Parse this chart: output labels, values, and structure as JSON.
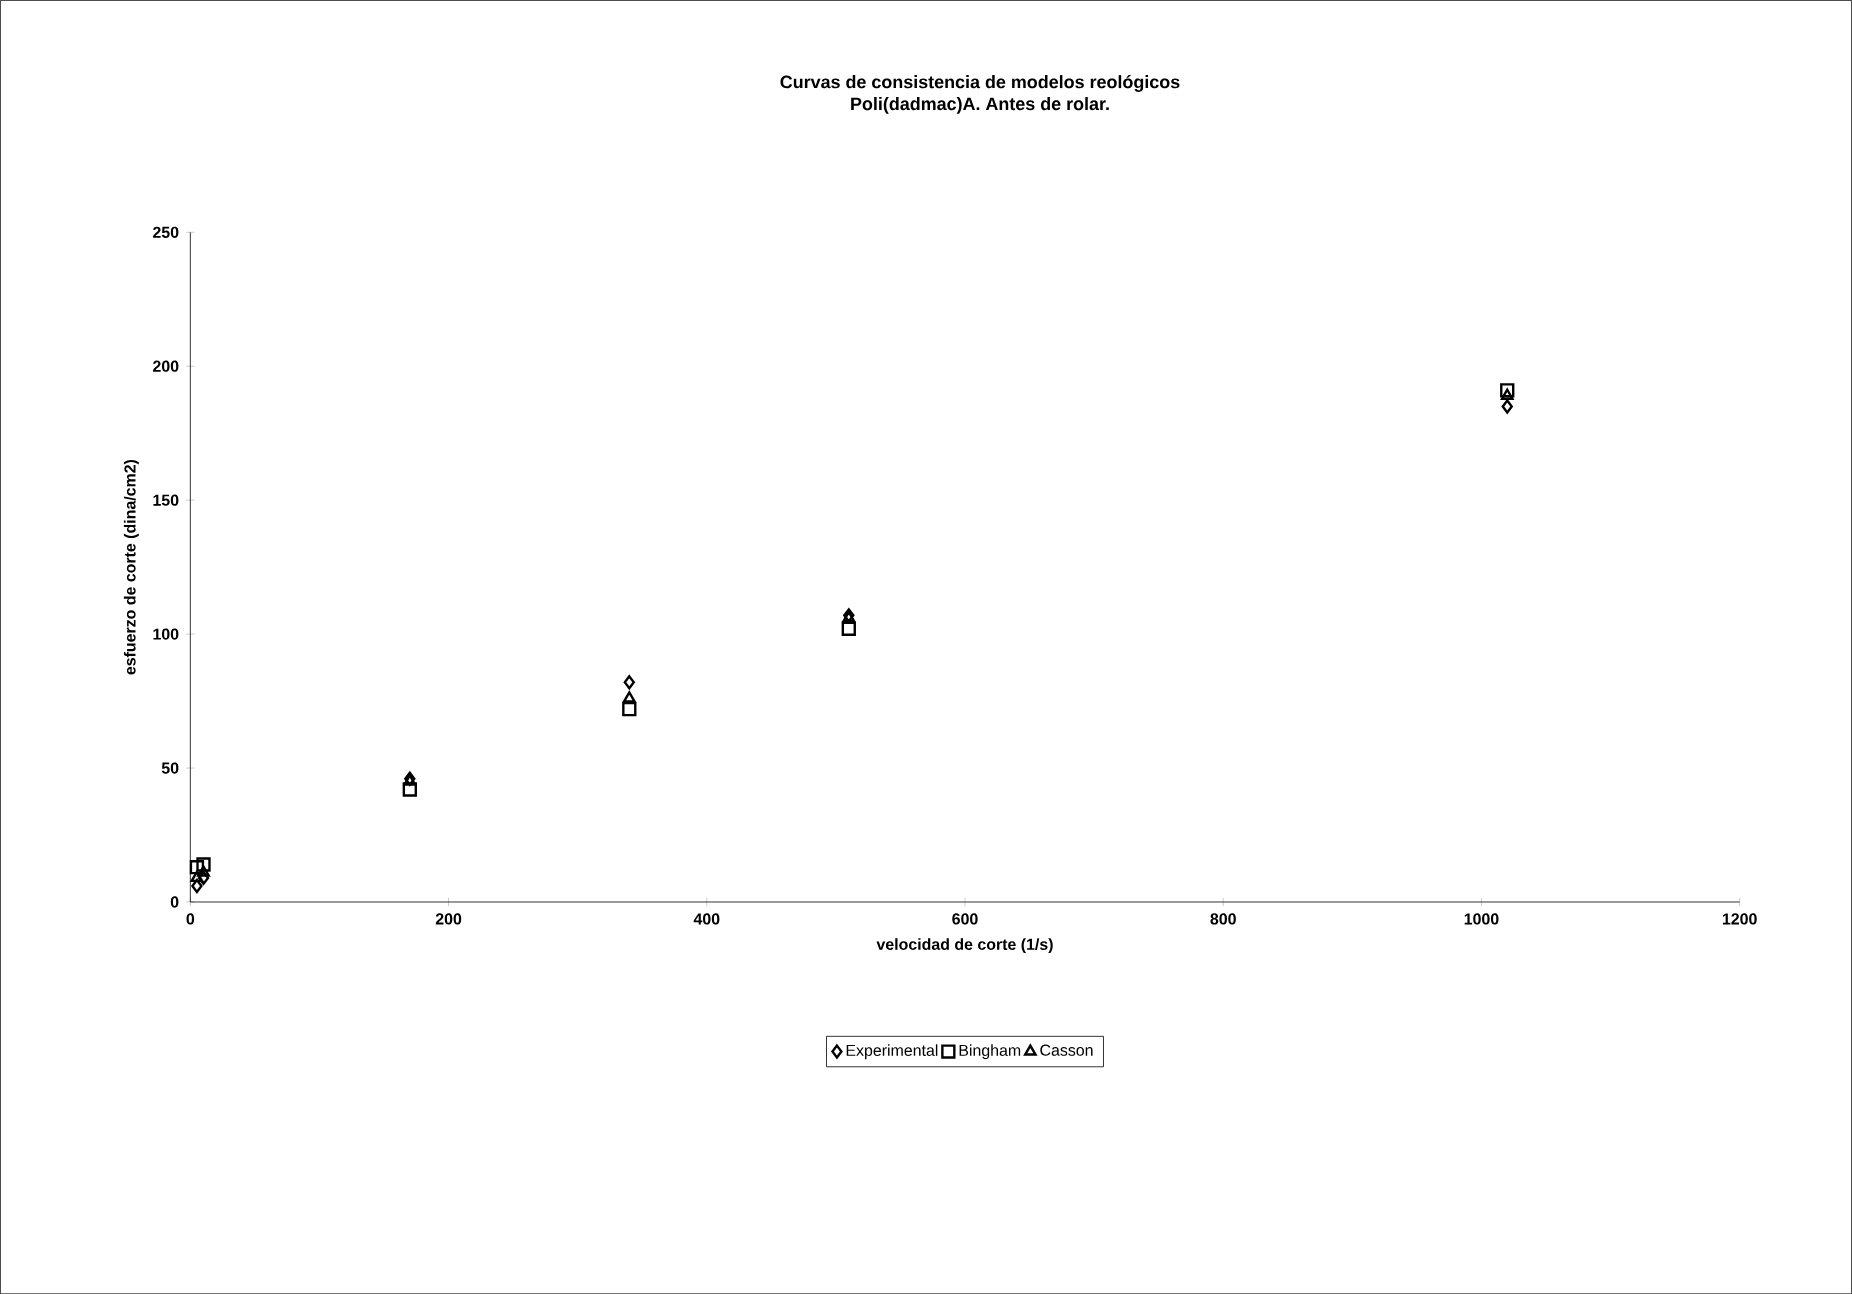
{
  "chart_data": {
    "type": "scatter",
    "title": "Curvas de consistencia de modelos reológicos",
    "subtitle": "Poli(dadmac)A. Antes de rolar.",
    "xlabel": "velocidad de corte (1/s)",
    "ylabel": "esfuerzo de corte (dina/cm2)",
    "x": [
      5.1,
      10.2,
      170,
      340,
      510,
      1020
    ],
    "series": [
      {
        "name": "Experimental",
        "color": "#000000",
        "marker": "diamond",
        "values": [
          6,
          9,
          46,
          82,
          107,
          185
        ]
      },
      {
        "name": "Bingham",
        "color": "#000000",
        "marker": "square",
        "values": [
          13,
          14,
          42,
          72,
          102,
          191
        ]
      },
      {
        "name": "Casson",
        "color": "#000000",
        "marker": "triangle",
        "values": [
          9,
          11,
          45,
          76,
          106,
          189
        ]
      }
    ],
    "xlim": [
      0,
      1200
    ],
    "xticks": [
      0,
      200,
      400,
      600,
      800,
      1000,
      1200
    ],
    "ylim": [
      0,
      250
    ],
    "yticks": [
      0,
      50,
      100,
      150,
      200,
      250
    ],
    "grid": false,
    "legend": "bottom"
  }
}
